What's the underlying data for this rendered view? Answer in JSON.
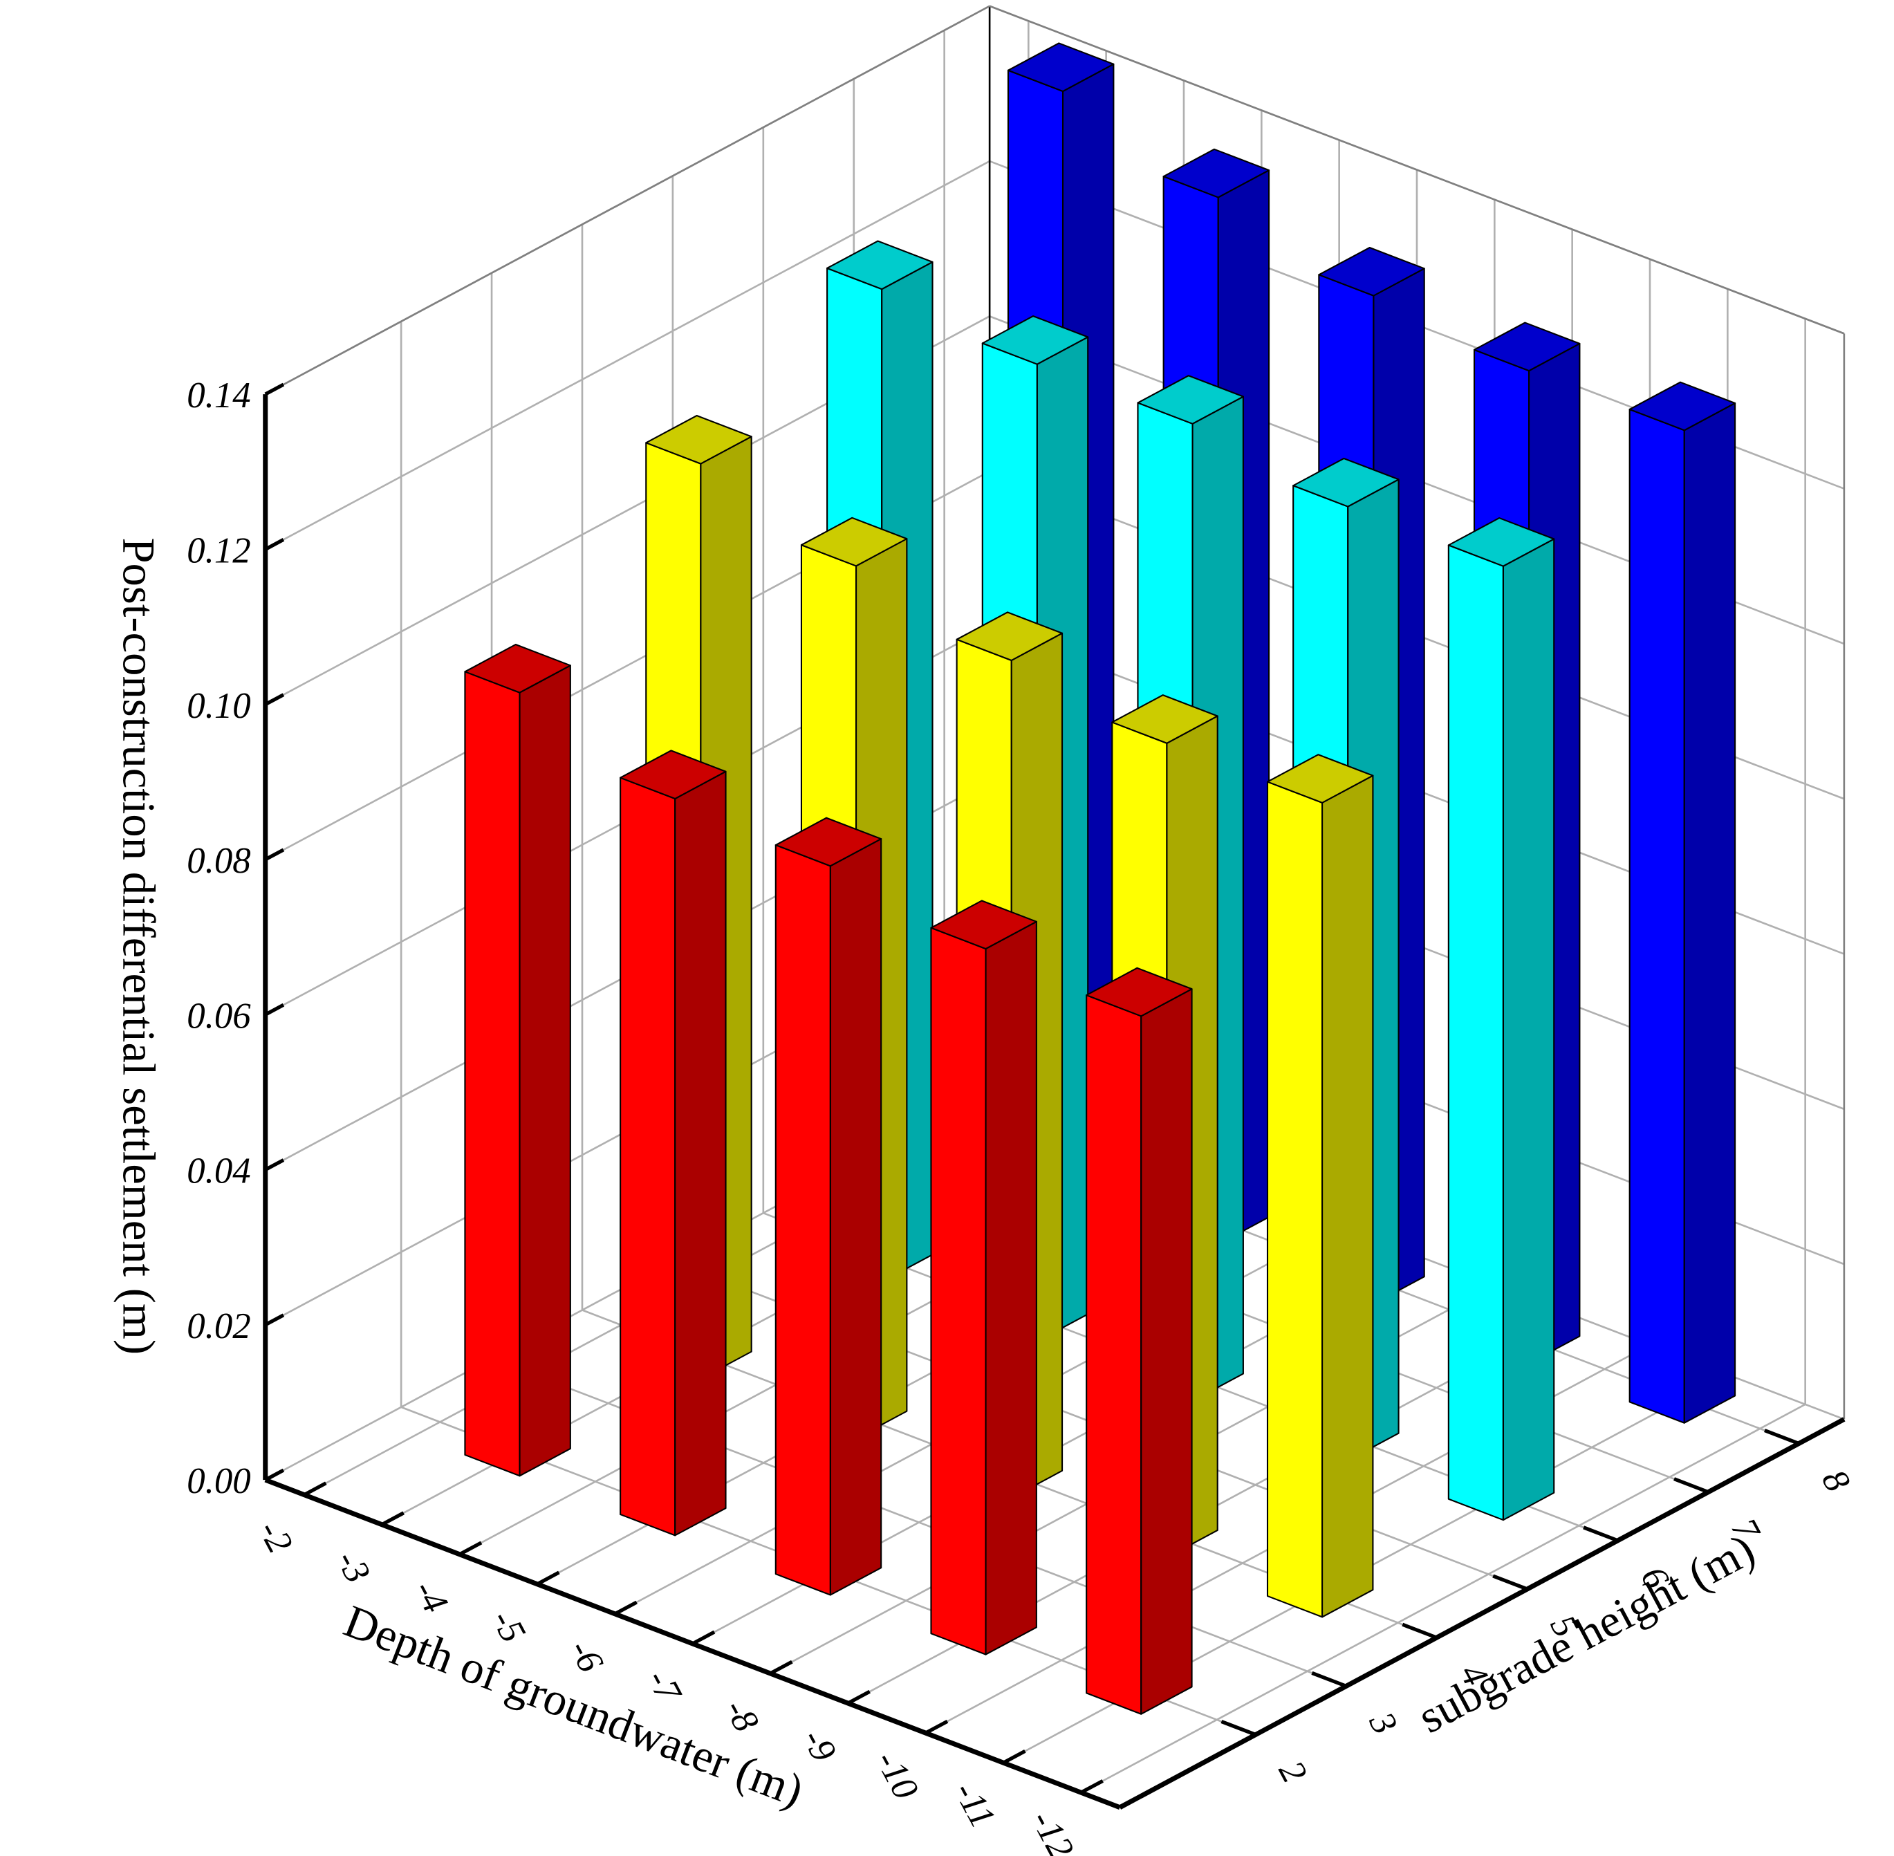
{
  "chart_data": {
    "type": "bar3d",
    "z_label": "Post-construction differential settlement (m)",
    "x_label": "Depth of groundwater (m)",
    "y_label": "subgrade height (m)",
    "xlim": [
      -1.5,
      -12.5
    ],
    "xticks": [
      -2,
      -3,
      -4,
      -5,
      -6,
      -7,
      -8,
      -9,
      -10,
      -11,
      -12
    ],
    "ylim": [
      0.5,
      8.5
    ],
    "yticks": [
      2,
      3,
      4,
      5,
      6,
      7,
      8
    ],
    "zlim": [
      0,
      0.14
    ],
    "zticks": [
      {
        "value": 0,
        "label": "0.00"
      },
      0.02,
      0.04,
      0.06,
      0.08,
      {
        "value": 0.1,
        "label": "0.10"
      },
      0.12,
      0.14
    ],
    "grid": true,
    "x": [
      -3,
      -5,
      -7,
      -9,
      -11
    ],
    "series": [
      {
        "color": "#ff0000",
        "y": 2,
        "values": [
          0.101,
          0.095,
          0.094,
          0.091,
          0.09
        ]
      },
      {
        "color": "#ffff00",
        "y": 4,
        "values": [
          0.118,
          0.1125,
          0.108,
          0.105,
          0.105
        ]
      },
      {
        "color": "#00ffff",
        "y": 6,
        "values": [
          0.128,
          0.126,
          0.126,
          0.123,
          0.123
        ]
      },
      {
        "color": "#0000ff",
        "y": 8,
        "values": [
          0.141,
          0.135,
          0.13,
          0.128,
          0.128
        ]
      }
    ]
  }
}
